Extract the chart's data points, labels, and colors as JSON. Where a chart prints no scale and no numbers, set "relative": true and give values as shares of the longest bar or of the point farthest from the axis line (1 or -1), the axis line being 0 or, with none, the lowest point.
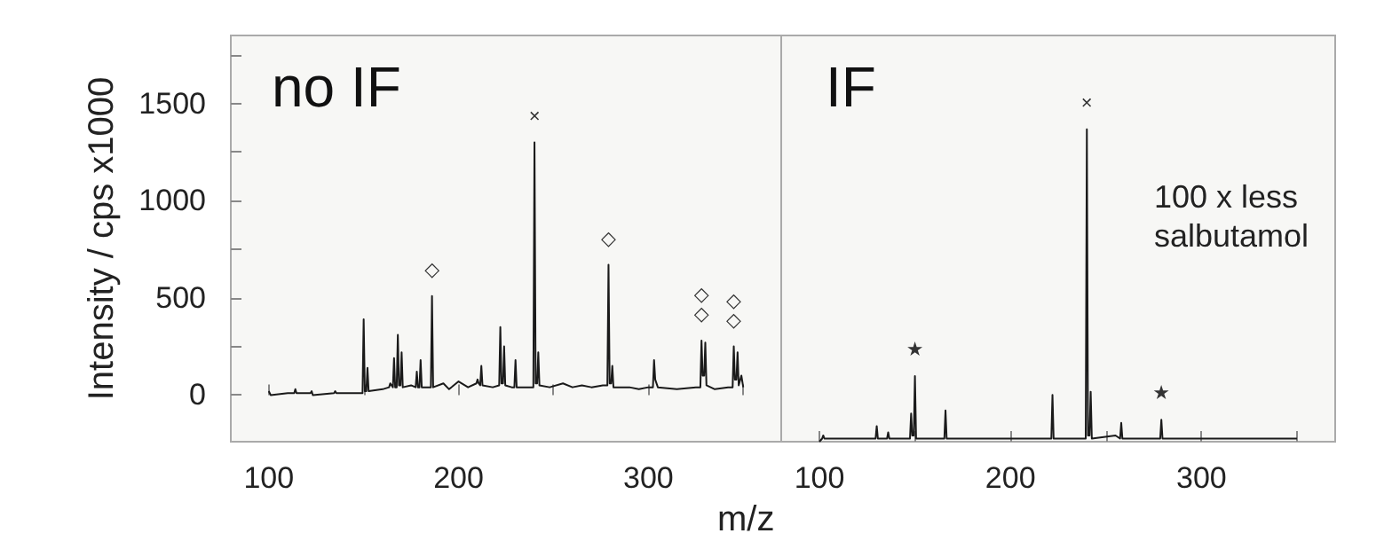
{
  "chart_data": [
    {
      "type": "line",
      "title": "no IF",
      "xlabel": "m/z",
      "ylabel": "Intensity / cps x1000",
      "marker": "none",
      "line_style": "solid",
      "grid": false,
      "xlim": [
        80,
        370
      ],
      "ylim": [
        -240,
        1850
      ],
      "xticks": [
        100,
        {
          "value": 150,
          "label": null
        },
        200,
        {
          "value": 250,
          "label": null
        },
        300,
        {
          "value": 350,
          "label": null
        }
      ],
      "yticks": [
        {
          "value": 0,
          "label": "0"
        },
        {
          "value": 250,
          "label": null
        },
        500,
        {
          "value": 750,
          "label": null
        },
        1000,
        {
          "value": 1250,
          "label": null
        },
        1500,
        {
          "value": 1750,
          "label": null
        }
      ],
      "series": [
        {
          "color": "#1a1a1a",
          "x": [
            100,
            101,
            110,
            113.4,
            114,
            114.6,
            122,
            122.6,
            123.2,
            134.4,
            135,
            135.6,
            148,
            149.4,
            150,
            150.6,
            151.4,
            152,
            152.6,
            160,
            163.4,
            164,
            165.4,
            166,
            166.6,
            167.4,
            168,
            168.6,
            169.4,
            170,
            170.6,
            175,
            177.4,
            178,
            178.6,
            179.4,
            180,
            180.6,
            185.4,
            186,
            186.6,
            192,
            195,
            200,
            205,
            209.4,
            210,
            210.6,
            211.4,
            212,
            212.6,
            218,
            221.4,
            222,
            222.6,
            223.4,
            224,
            224.6,
            228,
            229.4,
            230,
            230.6,
            235,
            239.4,
            240,
            240.6,
            241.4,
            242,
            242.6,
            248,
            255,
            260,
            265,
            270,
            276,
            278.4,
            279,
            279.6,
            280.4,
            281,
            281.6,
            290,
            295,
            300,
            302.4,
            303,
            303.6,
            305,
            315,
            325,
            327.4,
            328,
            328.6,
            329.4,
            330,
            330.6,
            335,
            342,
            344.4,
            345,
            345.6,
            346.4,
            347,
            347.6,
            349,
            350
          ],
          "values": [
            20,
            0,
            10,
            10,
            30,
            10,
            10,
            20,
            0,
            10,
            20,
            10,
            10,
            10,
            390,
            20,
            20,
            140,
            20,
            30,
            40,
            60,
            40,
            190,
            40,
            40,
            310,
            50,
            50,
            220,
            40,
            50,
            40,
            120,
            40,
            40,
            180,
            40,
            40,
            510,
            40,
            60,
            30,
            70,
            40,
            60,
            80,
            60,
            50,
            150,
            50,
            40,
            50,
            350,
            60,
            60,
            250,
            50,
            40,
            40,
            180,
            40,
            40,
            40,
            1300,
            60,
            60,
            220,
            50,
            40,
            60,
            40,
            50,
            40,
            50,
            50,
            670,
            60,
            60,
            150,
            40,
            40,
            30,
            40,
            40,
            180,
            80,
            40,
            30,
            40,
            40,
            280,
            100,
            100,
            270,
            50,
            30,
            40,
            40,
            250,
            80,
            80,
            220,
            50,
            100,
            40
          ]
        }
      ],
      "annotations": [
        {
          "text": "×",
          "x": 240,
          "y": 1300
        },
        {
          "text": "◇",
          "x": 186,
          "y": 510
        },
        {
          "text": "◇",
          "x": 279,
          "y": 670
        },
        {
          "text": "◇\n◇",
          "x": 328,
          "y": 280
        },
        {
          "text": "◇\n◇",
          "x": 345,
          "y": 250
        }
      ]
    },
    {
      "type": "line",
      "title": "IF",
      "relative": true,
      "marker": "none",
      "line_style": "solid",
      "grid": false,
      "tick_labels": "x",
      "xlim": [
        80,
        370
      ],
      "xticks": [
        100,
        {
          "value": 150,
          "label": null
        },
        200,
        {
          "value": 250,
          "label": null
        },
        300,
        {
          "value": 350,
          "label": null
        }
      ],
      "series": [
        {
          "color": "#1a1a1a",
          "x": [
            100,
            101.4,
            102,
            102.6,
            110,
            128,
            129.4,
            130,
            130.6,
            135.4,
            136,
            136.6,
            146,
            147.4,
            148,
            148.6,
            149.4,
            150,
            150.6,
            160,
            165.4,
            166,
            166.6,
            180,
            200,
            221.4,
            222,
            222.6,
            239.4,
            240,
            240.6,
            241.4,
            242,
            242.6,
            255,
            257.4,
            258,
            258.6,
            278.4,
            279,
            279.6,
            300,
            330,
            350
          ],
          "values": [
            0,
            0.01,
            0.02,
            0.01,
            0.01,
            0.01,
            0.01,
            0.05,
            0.01,
            0.01,
            0.03,
            0.01,
            0.01,
            0.01,
            0.09,
            0.02,
            0.02,
            0.21,
            0.01,
            0.01,
            0.01,
            0.1,
            0.01,
            0.01,
            0.01,
            0.01,
            0.15,
            0.01,
            0.01,
            1,
            0.02,
            0.02,
            0.16,
            0.01,
            0.02,
            0.01,
            0.06,
            0.01,
            0.01,
            0.07,
            0.01,
            0.01,
            0.01,
            0.01
          ]
        }
      ],
      "annotations": [
        {
          "text": "×",
          "x": 240,
          "y": 1
        },
        {
          "text": "★",
          "x": 150,
          "y": 0.21
        },
        {
          "text": "★",
          "x": 279,
          "y": 0.07
        },
        "100 x less\nsalbutamol"
      ]
    }
  ]
}
